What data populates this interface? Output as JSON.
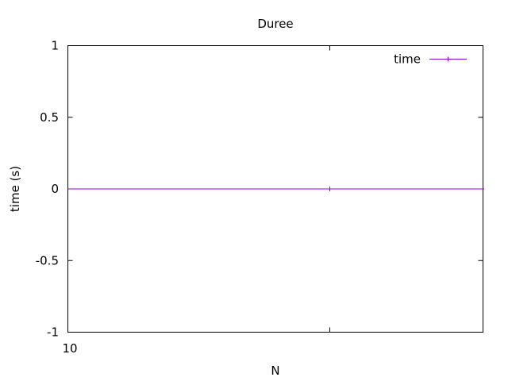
{
  "chart_data": {
    "type": "line",
    "title": "Duree",
    "xlabel": "N",
    "ylabel": "time (s)",
    "ylim": [
      -1,
      1
    ],
    "yticks": [
      {
        "value": 1,
        "label": "1"
      },
      {
        "value": 0.5,
        "label": "0.5"
      },
      {
        "value": 0,
        "label": "0"
      },
      {
        "value": -0.5,
        "label": "-0.5"
      },
      {
        "value": -1,
        "label": "-1"
      }
    ],
    "xticks": [
      {
        "label": "10"
      }
    ],
    "legend_position": "top-right",
    "grid": false,
    "series": [
      {
        "name": "time",
        "color": "#9400d3",
        "marker": "plus",
        "x": [
          10
        ],
        "y": [
          0
        ]
      }
    ]
  }
}
